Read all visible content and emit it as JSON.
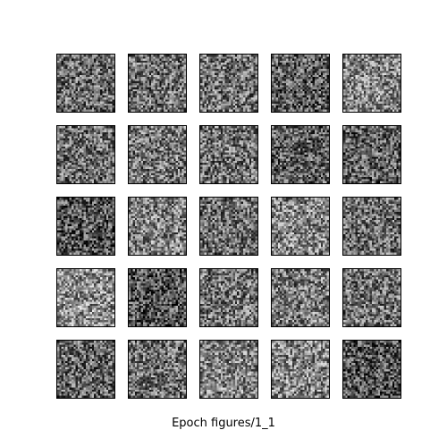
{
  "caption": "Epoch figures/1_1",
  "grid": {
    "rows": 5,
    "cols": 5,
    "tile_brightness": [
      [
        0.42,
        0.44,
        0.45,
        0.36,
        0.52
      ],
      [
        0.43,
        0.46,
        0.44,
        0.38,
        0.37
      ],
      [
        0.33,
        0.5,
        0.43,
        0.52,
        0.44
      ],
      [
        0.55,
        0.33,
        0.45,
        0.48,
        0.44
      ],
      [
        0.4,
        0.44,
        0.5,
        0.52,
        0.33
      ]
    ]
  }
}
